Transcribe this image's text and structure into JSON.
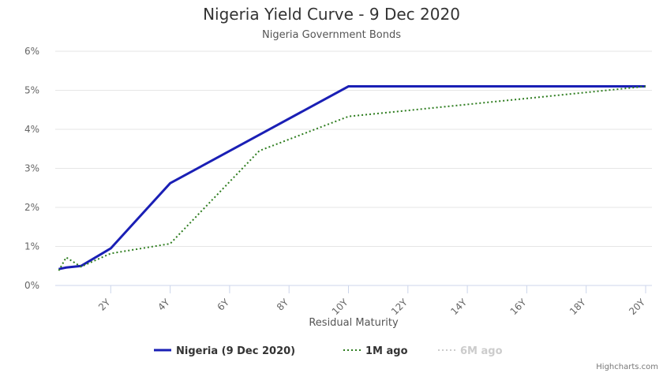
{
  "chart_data": {
    "type": "line",
    "title": "Nigeria Yield Curve - 9 Dec 2020",
    "subtitle": "Nigeria Government Bonds",
    "x_label": "Residual Maturity",
    "x": [
      0.25,
      0.5,
      1,
      2,
      4,
      7,
      10,
      20
    ],
    "series": [
      {
        "name": "Nigeria (9 Dec 2020)",
        "color": "#1a1fb5",
        "dash": "solid",
        "visible": true,
        "values": [
          0.42,
          0.46,
          0.5,
          0.95,
          2.62,
          3.86,
          5.1,
          5.1
        ]
      },
      {
        "name": "1M ago",
        "color": "#2e7d1f",
        "dash": "dot",
        "visible": true,
        "values": [
          0.38,
          0.72,
          0.48,
          0.82,
          1.07,
          3.45,
          4.33,
          5.1
        ]
      },
      {
        "name": "6M ago",
        "color": "#cccccc",
        "dash": "dot",
        "visible": false,
        "values": [
          null,
          null,
          null,
          null,
          null,
          null,
          null,
          null
        ]
      }
    ],
    "xlim": [
      0,
      20
    ],
    "xticks": [
      {
        "value": 2,
        "label": "2Y"
      },
      {
        "value": 4,
        "label": "4Y"
      },
      {
        "value": 6,
        "label": "6Y"
      },
      {
        "value": 8,
        "label": "8Y"
      },
      {
        "value": 10,
        "label": "10Y"
      },
      {
        "value": 12,
        "label": "12Y"
      },
      {
        "value": 14,
        "label": "14Y"
      },
      {
        "value": 16,
        "label": "16Y"
      },
      {
        "value": 18,
        "label": "18Y"
      },
      {
        "value": 20,
        "label": "20Y"
      }
    ],
    "ylim": [
      0,
      6
    ],
    "yticks": [
      {
        "value": 0,
        "label": "0%"
      },
      {
        "value": 1,
        "label": "1%"
      },
      {
        "value": 2,
        "label": "2%"
      },
      {
        "value": 3,
        "label": "3%"
      },
      {
        "value": 4,
        "label": "4%"
      },
      {
        "value": 5,
        "label": "5%"
      },
      {
        "value": 6,
        "label": "6%"
      }
    ],
    "grid": true,
    "legend": "bottom",
    "credits": "Highcharts.com"
  }
}
